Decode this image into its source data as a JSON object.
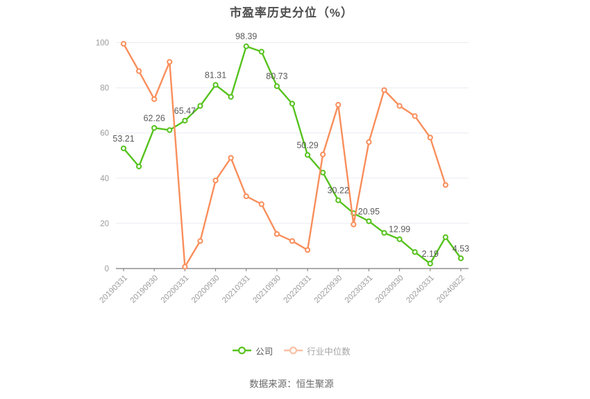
{
  "title": "市盈率历史分位（%）",
  "source_label": "数据来源：恒生聚源",
  "colors": {
    "company_line": "#56c21d",
    "industry_line": "#f98e5b",
    "industry_legend_icon": "#f9c0a3",
    "gridline": "#e8ebf2",
    "axis_line": "#7a7a7a",
    "tick_label": "#9b9b9b",
    "point_label": "#5a5a5a",
    "background": "#ffffff"
  },
  "legend": [
    {
      "label": "公司",
      "icon": "line-hollow-circle",
      "icon_color": "#56c21d",
      "text_color": "#595959"
    },
    {
      "label": "行业中位数",
      "icon": "line-hollow-circle",
      "icon_color": "#f9c0a3",
      "text_color": "#a3a3a3"
    }
  ],
  "chart_data": {
    "type": "line",
    "title": "市盈率历史分位（%）",
    "xlabel": "",
    "ylabel": "",
    "ylim": [
      0,
      100
    ],
    "y_ticks": [
      0,
      20,
      40,
      60,
      80,
      100
    ],
    "grid": true,
    "legend_position": "bottom",
    "x_tick_labels": [
      "20190331",
      "20190930",
      "20200331",
      "20200930",
      "20210331",
      "20210930",
      "20220331",
      "20220930",
      "20230331",
      "20230930",
      "20240331",
      "20240822"
    ],
    "x_tick_point_indices": [
      0,
      2,
      4,
      6,
      8,
      10,
      12,
      14,
      16,
      18,
      20,
      22
    ],
    "x_label_rotation_deg": 45,
    "series": [
      {
        "name": "公司",
        "key": "company",
        "color": "#56c21d",
        "marker": "hollow-circle",
        "values": [
          53.21,
          45.2,
          62.26,
          61.3,
          65.47,
          72.0,
          81.31,
          76.0,
          98.39,
          96.0,
          80.73,
          73.0,
          50.29,
          42.5,
          30.22,
          24.5,
          20.95,
          15.8,
          12.99,
          7.3,
          2.19,
          13.9,
          4.53
        ],
        "point_labels": [
          "53.21",
          null,
          "62.26",
          null,
          "65.47",
          null,
          "81.31",
          null,
          "98.39",
          null,
          "80.73",
          null,
          "50.29",
          null,
          "30.22",
          null,
          "20.95",
          null,
          "12.99",
          null,
          "2.19",
          null,
          "4.53"
        ]
      },
      {
        "name": "行业中位数",
        "key": "industry-median",
        "color": "#f98e5b",
        "marker": "hollow-circle",
        "values": [
          99.5,
          87.4,
          75.0,
          91.5,
          0.8,
          12.2,
          39.0,
          49.0,
          32.0,
          28.5,
          15.3,
          12.2,
          8.2,
          50.5,
          72.5,
          19.5,
          56.0,
          79.0,
          72.0,
          67.5,
          58.0,
          37.0
        ],
        "point_labels": []
      }
    ]
  }
}
